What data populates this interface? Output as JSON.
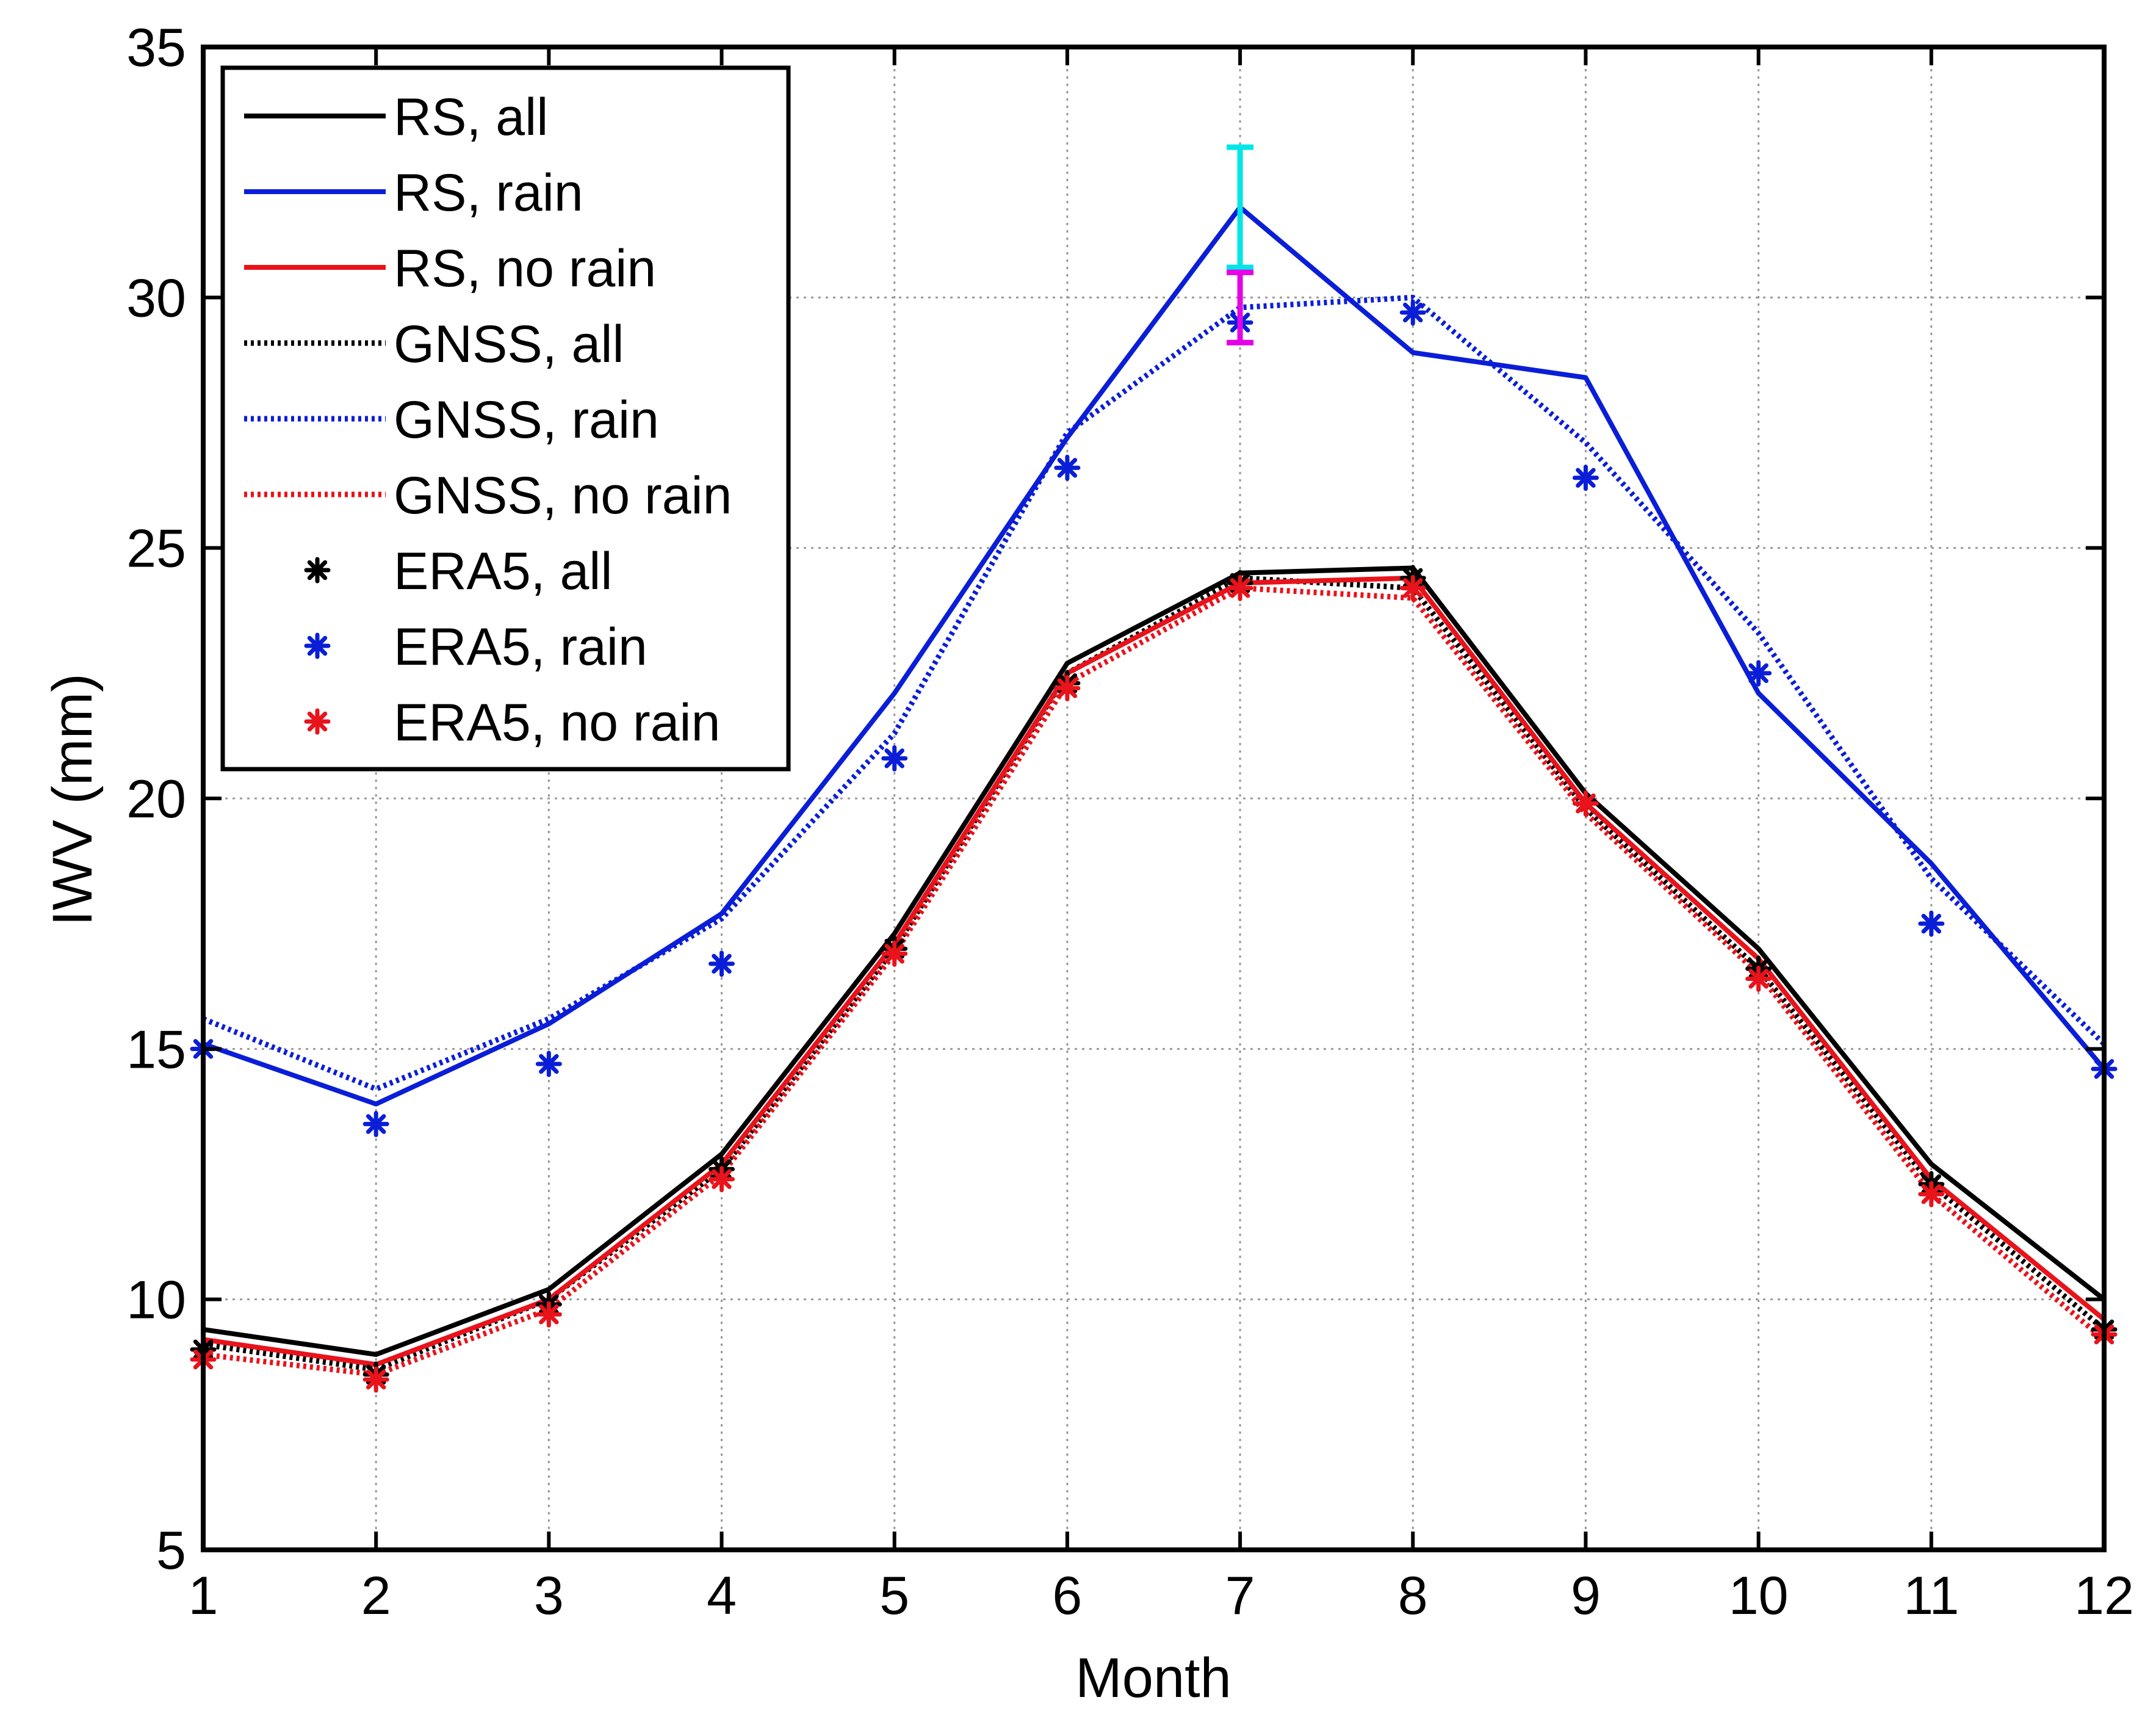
{
  "chart_data": {
    "type": "line",
    "title": "",
    "xlabel": "Month",
    "ylabel": "IWV (mm)",
    "xlim": [
      1,
      12
    ],
    "ylim": [
      5,
      35
    ],
    "x_ticks": [
      1,
      2,
      3,
      4,
      5,
      6,
      7,
      8,
      9,
      10,
      11,
      12
    ],
    "y_ticks": [
      5,
      10,
      15,
      20,
      25,
      30,
      35
    ],
    "grid": true,
    "legend_position": "top-left",
    "x": [
      1,
      2,
      3,
      4,
      5,
      6,
      7,
      8,
      9,
      10,
      11,
      12
    ],
    "series": [
      {
        "name": "RS, all",
        "style": "solid",
        "color": "#000000",
        "values": [
          9.4,
          8.9,
          10.2,
          12.9,
          17.3,
          22.7,
          24.5,
          24.6,
          20.1,
          17.0,
          12.7,
          10.0
        ]
      },
      {
        "name": "RS, rain",
        "style": "solid",
        "color": "#0a1ed8",
        "values": [
          15.1,
          13.9,
          15.5,
          17.7,
          22.1,
          27.2,
          31.8,
          28.9,
          28.4,
          22.1,
          18.7,
          14.6
        ]
      },
      {
        "name": "RS, no rain",
        "style": "solid",
        "color": "#e8131b",
        "values": [
          9.2,
          8.7,
          10.0,
          12.7,
          17.1,
          22.5,
          24.3,
          24.4,
          19.9,
          16.8,
          12.4,
          9.6
        ]
      },
      {
        "name": "GNSS, all",
        "style": "dotted",
        "color": "#000000",
        "values": [
          9.1,
          8.6,
          10.0,
          12.6,
          17.0,
          22.5,
          24.4,
          24.2,
          19.8,
          16.6,
          12.3,
          9.4
        ]
      },
      {
        "name": "GNSS, rain",
        "style": "dotted",
        "color": "#0a1ed8",
        "values": [
          15.6,
          14.2,
          15.6,
          17.6,
          21.3,
          27.3,
          29.8,
          30.0,
          27.1,
          23.3,
          18.4,
          15.1
        ]
      },
      {
        "name": "GNSS, no rain",
        "style": "dotted",
        "color": "#e8131b",
        "values": [
          8.9,
          8.5,
          9.8,
          12.5,
          16.9,
          22.3,
          24.2,
          24.0,
          19.7,
          16.5,
          12.1,
          9.2
        ]
      },
      {
        "name": "ERA5, all",
        "style": "marker",
        "color": "#000000",
        "values": [
          9.0,
          8.5,
          9.9,
          12.6,
          17.0,
          22.3,
          24.3,
          24.4,
          19.9,
          16.6,
          12.3,
          9.4
        ]
      },
      {
        "name": "ERA5, rain",
        "style": "marker",
        "color": "#0a1ed8",
        "values": [
          15.0,
          13.5,
          14.7,
          16.7,
          20.8,
          26.6,
          29.5,
          29.7,
          26.4,
          22.5,
          17.5,
          14.6
        ]
      },
      {
        "name": "ERA5, no rain",
        "style": "marker",
        "color": "#e8131b",
        "values": [
          8.8,
          8.4,
          9.7,
          12.4,
          16.9,
          22.2,
          24.2,
          24.2,
          19.9,
          16.4,
          12.1,
          9.3
        ]
      }
    ],
    "error_bars": [
      {
        "name": "RS, rain uncertainty",
        "x": 7,
        "low": 30.6,
        "high": 33.0,
        "color": "#00e6e6"
      },
      {
        "name": "GNSS, rain uncertainty",
        "x": 7,
        "low": 29.1,
        "high": 30.5,
        "color": "#e600e6"
      }
    ]
  }
}
